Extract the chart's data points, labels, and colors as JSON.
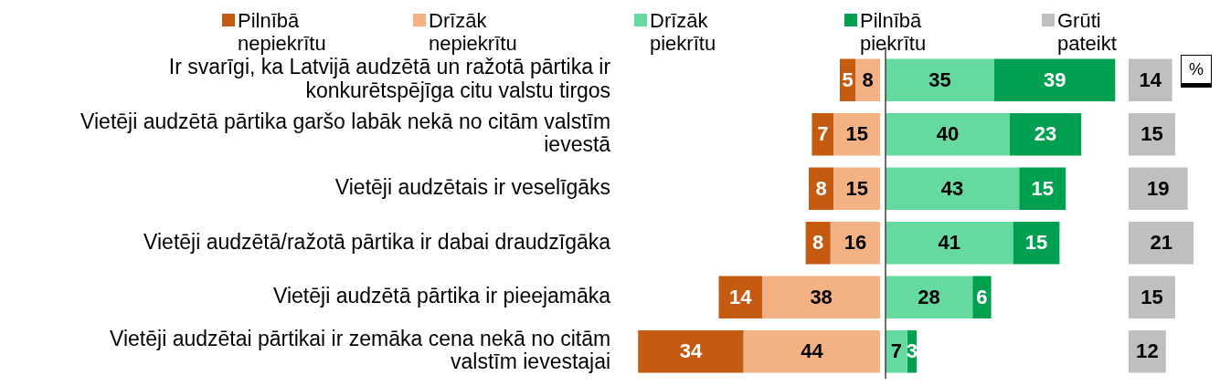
{
  "chart_data": [
    {
      "type": "bar",
      "orientation": "horizontal",
      "stacked": true,
      "legend": "top",
      "tick_labels": "y",
      "data_labels": true,
      "xlim": [
        78,
        0
      ],
      "categories": [
        "Ir svarīgi, ka Latvijā audzētā un ražotā pārtika ir konkurētspējīga citu valstu tirgos",
        "Vietēji audzētā pārtika garšo labāk nekā no citām valstīm ievestā",
        "Vietēji audzētais ir veselīgāks",
        "Vietēji audzētā/ražotā pārtika ir dabai draudzīgāka",
        "Vietēji audzētā pārtika ir pieejamāka",
        "Vietēji audzētai pārtikai ir zemāka cena nekā no citām valstīm ievestajai"
      ],
      "series": [
        {
          "name": "Drīzāk nepiekrītu",
          "color": "#f4b183",
          "values": [
            8,
            15,
            15,
            16,
            38,
            44
          ]
        },
        {
          "name": "Pilnībā nepiekrītu",
          "color": "#c55a11",
          "values": [
            5,
            7,
            8,
            8,
            14,
            34
          ]
        }
      ]
    },
    {
      "type": "bar",
      "orientation": "horizontal",
      "stacked": true,
      "legend": "top",
      "tick_labels": false,
      "data_labels": true,
      "xlim": [
        0,
        74
      ],
      "categories": [
        null,
        null,
        null,
        null,
        null,
        null
      ],
      "series": [
        {
          "name": "Drīzāk piekrītu",
          "color": "#66d9a0",
          "values": [
            35,
            40,
            43,
            41,
            28,
            7
          ]
        },
        {
          "name": "Pilnībā piekrītu",
          "color": "#00a050",
          "values": [
            39,
            23,
            15,
            15,
            6,
            3
          ]
        }
      ],
      "ref_lines": [
        {
          "axis": "x",
          "value": 0,
          "color": "#404040"
        }
      ]
    },
    {
      "type": "bar",
      "orientation": "horizontal",
      "legend": "top",
      "tick_labels": false,
      "data_labels": true,
      "xlim": [
        0,
        21
      ],
      "categories": [
        null,
        null,
        null,
        null,
        null,
        null
      ],
      "series": [
        {
          "name": "Grūti pateikt",
          "color": "#bfbfbf",
          "values": [
            14,
            15,
            19,
            21,
            15,
            12
          ]
        }
      ],
      "annotations": [
        "%"
      ]
    }
  ]
}
